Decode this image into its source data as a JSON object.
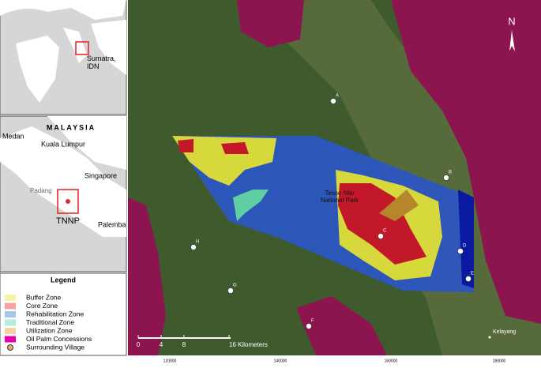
{
  "inset_world": {
    "label": "Sumatra,\nIDN"
  },
  "inset_region": {
    "country": "MALAYSIA",
    "cities": [
      "Medan",
      "Kuala Lumpur",
      "Singapore",
      "Padang",
      "Palemba"
    ],
    "park": "TNNP"
  },
  "legend": {
    "title": "Legend",
    "items": [
      {
        "label": "Buffer Zone",
        "color": "#f6f3a6"
      },
      {
        "label": "Core Zone",
        "color": "#f4a3a3"
      },
      {
        "label": "Rehabilitation Zone",
        "color": "#a9c4ea"
      },
      {
        "label": "Traditional Zone",
        "color": "#b6ecdf"
      },
      {
        "label": "Utilization Zone",
        "color": "#f3d3a3"
      },
      {
        "label": "Oil Palm Concessions",
        "color": "#e600a9"
      },
      {
        "label": "Surrounding Village",
        "color": "#d9b36b"
      }
    ]
  },
  "map": {
    "park_label": "Tesso Nilo\nNational Park",
    "north": "N",
    "town": "Kelayang",
    "villages": [
      "A",
      "B",
      "C",
      "D",
      "E",
      "F",
      "G",
      "H"
    ],
    "scale": [
      "0",
      "4",
      "8",
      "16 Kilometers"
    ],
    "easting_ticks": [
      "120000",
      "140000",
      "160000",
      "180000"
    ]
  }
}
